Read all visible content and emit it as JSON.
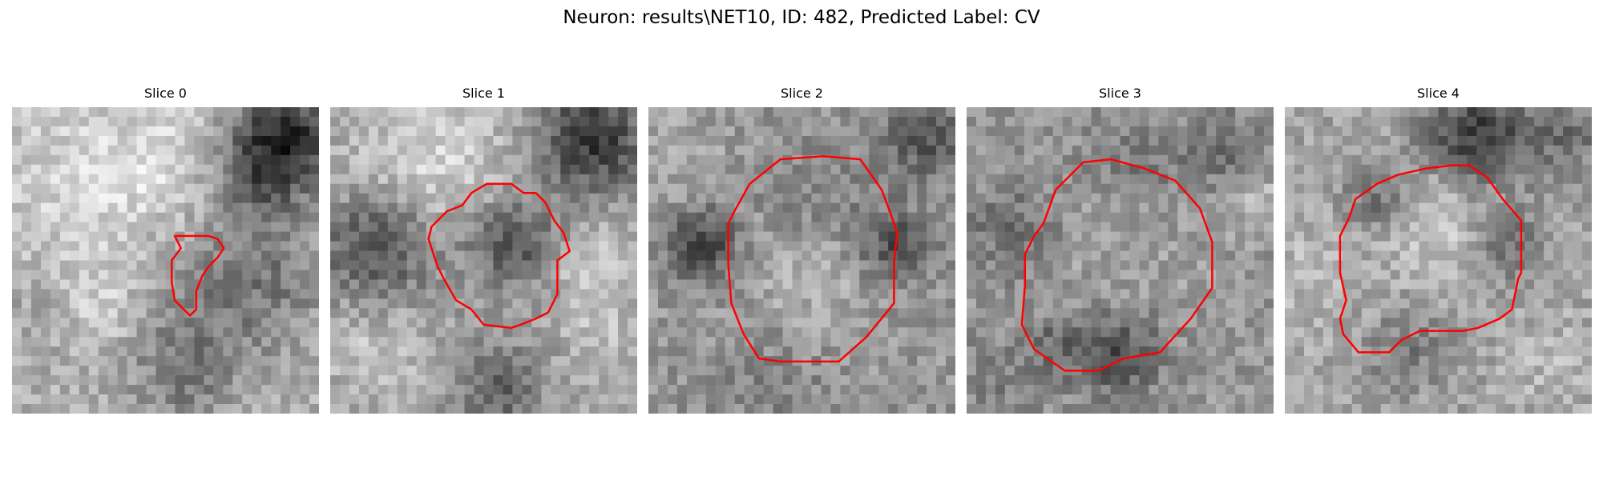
{
  "figure": {
    "title": "Neuron: results\\NET10, ID: 482, Predicted Label: CV"
  },
  "colors": {
    "contour": "#ff0000",
    "background": "#ffffff"
  },
  "panels": [
    {
      "title": "Slice 0",
      "contour": [
        [
          0.53,
          0.42
        ],
        [
          0.6,
          0.42
        ],
        [
          0.64,
          0.42
        ],
        [
          0.67,
          0.43
        ],
        [
          0.69,
          0.46
        ],
        [
          0.67,
          0.49
        ],
        [
          0.64,
          0.52
        ],
        [
          0.62,
          0.55
        ],
        [
          0.6,
          0.6
        ],
        [
          0.6,
          0.66
        ],
        [
          0.58,
          0.68
        ],
        [
          0.54,
          0.64
        ],
        [
          0.53,
          0.63
        ],
        [
          0.52,
          0.57
        ],
        [
          0.52,
          0.5
        ],
        [
          0.55,
          0.46
        ]
      ]
    },
    {
      "title": "Slice 1",
      "contour": [
        [
          0.43,
          0.32
        ],
        [
          0.46,
          0.28
        ],
        [
          0.51,
          0.25
        ],
        [
          0.59,
          0.25
        ],
        [
          0.63,
          0.28
        ],
        [
          0.67,
          0.28
        ],
        [
          0.7,
          0.31
        ],
        [
          0.73,
          0.37
        ],
        [
          0.76,
          0.41
        ],
        [
          0.78,
          0.47
        ],
        [
          0.74,
          0.5
        ],
        [
          0.74,
          0.61
        ],
        [
          0.71,
          0.67
        ],
        [
          0.67,
          0.69
        ],
        [
          0.62,
          0.71
        ],
        [
          0.59,
          0.72
        ],
        [
          0.5,
          0.71
        ],
        [
          0.46,
          0.66
        ],
        [
          0.41,
          0.63
        ],
        [
          0.37,
          0.56
        ],
        [
          0.35,
          0.52
        ],
        [
          0.32,
          0.43
        ],
        [
          0.33,
          0.39
        ],
        [
          0.38,
          0.34
        ]
      ]
    },
    {
      "title": "Slice 2",
      "contour": [
        [
          0.33,
          0.25
        ],
        [
          0.43,
          0.17
        ],
        [
          0.57,
          0.16
        ],
        [
          0.69,
          0.17
        ],
        [
          0.76,
          0.27
        ],
        [
          0.79,
          0.35
        ],
        [
          0.81,
          0.41
        ],
        [
          0.8,
          0.51
        ],
        [
          0.8,
          0.64
        ],
        [
          0.71,
          0.75
        ],
        [
          0.62,
          0.83
        ],
        [
          0.43,
          0.83
        ],
        [
          0.36,
          0.82
        ],
        [
          0.31,
          0.74
        ],
        [
          0.27,
          0.64
        ],
        [
          0.26,
          0.51
        ],
        [
          0.26,
          0.38
        ],
        [
          0.28,
          0.34
        ]
      ]
    },
    {
      "title": "Slice 3",
      "contour": [
        [
          0.29,
          0.27
        ],
        [
          0.38,
          0.18
        ],
        [
          0.47,
          0.17
        ],
        [
          0.58,
          0.2
        ],
        [
          0.68,
          0.24
        ],
        [
          0.76,
          0.33
        ],
        [
          0.8,
          0.44
        ],
        [
          0.8,
          0.59
        ],
        [
          0.73,
          0.69
        ],
        [
          0.63,
          0.8
        ],
        [
          0.51,
          0.82
        ],
        [
          0.43,
          0.86
        ],
        [
          0.32,
          0.86
        ],
        [
          0.22,
          0.79
        ],
        [
          0.18,
          0.71
        ],
        [
          0.19,
          0.58
        ],
        [
          0.19,
          0.48
        ],
        [
          0.22,
          0.42
        ],
        [
          0.25,
          0.38
        ]
      ]
    },
    {
      "title": "Slice 4",
      "contour": [
        [
          0.21,
          0.36
        ],
        [
          0.23,
          0.3
        ],
        [
          0.3,
          0.25
        ],
        [
          0.37,
          0.22
        ],
        [
          0.46,
          0.2
        ],
        [
          0.54,
          0.19
        ],
        [
          0.6,
          0.19
        ],
        [
          0.66,
          0.23
        ],
        [
          0.71,
          0.3
        ],
        [
          0.77,
          0.37
        ],
        [
          0.77,
          0.54
        ],
        [
          0.76,
          0.56
        ],
        [
          0.74,
          0.66
        ],
        [
          0.7,
          0.69
        ],
        [
          0.63,
          0.72
        ],
        [
          0.58,
          0.73
        ],
        [
          0.44,
          0.73
        ],
        [
          0.38,
          0.76
        ],
        [
          0.34,
          0.8
        ],
        [
          0.24,
          0.8
        ],
        [
          0.19,
          0.74
        ],
        [
          0.18,
          0.69
        ],
        [
          0.2,
          0.63
        ],
        [
          0.18,
          0.54
        ],
        [
          0.18,
          0.42
        ]
      ]
    }
  ]
}
